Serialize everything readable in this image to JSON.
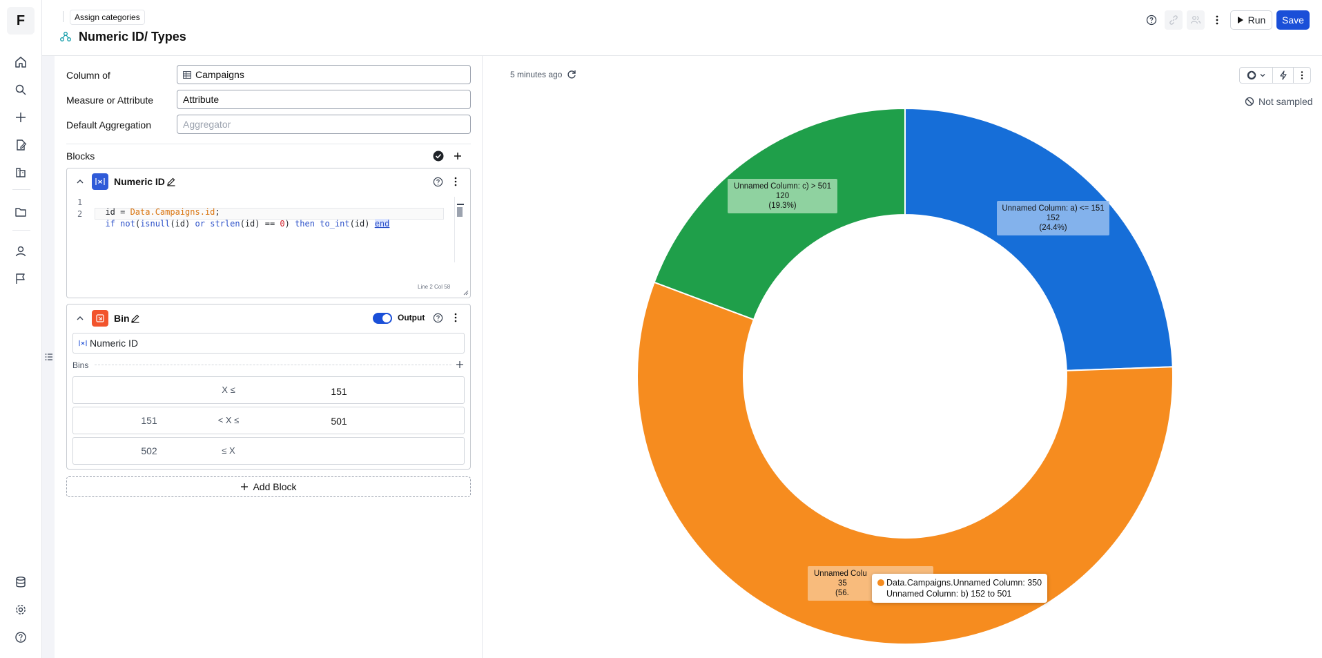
{
  "app": {
    "logo_letter": "F"
  },
  "header": {
    "breadcrumb": "Assign categories",
    "title": "Numeric ID/ Types",
    "run_label": "Run",
    "save_label": "Save"
  },
  "form": {
    "column_of": {
      "label": "Column of",
      "value": "Campaigns"
    },
    "measure_or_attribute": {
      "label": "Measure or Attribute",
      "value": "Attribute"
    },
    "default_aggregation": {
      "label": "Default Aggregation",
      "placeholder": "Aggregator"
    }
  },
  "blocks_label": "Blocks",
  "code_block": {
    "title": "Numeric ID",
    "lines": [
      {
        "num": "1",
        "text": "id = Data.Campaigns.id;"
      },
      {
        "num": "2",
        "text": "if not(isnull(id) or strlen(id) == 0) then to_int(id) end"
      }
    ],
    "status": "Line 2 Col 58"
  },
  "bin_block": {
    "title": "Bin",
    "output_label": "Output",
    "output_enabled": true,
    "input_value": "Numeric ID",
    "bins_label": "Bins",
    "rows": [
      {
        "lower": "",
        "op": "X ≤",
        "upper": "151"
      },
      {
        "lower": "151",
        "op": "< X ≤",
        "upper": "501"
      },
      {
        "lower": "502",
        "op": "≤ X",
        "upper": ""
      }
    ]
  },
  "add_block_label": "Add Block",
  "chart_panel": {
    "timestamp": "5 minutes ago",
    "sampling": "Not sampled"
  },
  "chart_data": {
    "type": "pie",
    "donut": true,
    "slices": [
      {
        "label": "Unnamed Column: a) <= 151",
        "value": 152,
        "percent": "(24.4%)",
        "color": "#166ed8"
      },
      {
        "label": "Unnamed Column: b) 152 to 501",
        "value": 350,
        "percent": "(56.",
        "color": "#f68c1f"
      },
      {
        "label": "Unnamed Column: c) > 501",
        "value": 120,
        "percent": "(19.3%)",
        "color": "#1f9f4a"
      }
    ],
    "partial_label": {
      "title": "Unnamed Colu",
      "value": "35"
    },
    "tooltip": {
      "line1": "Data.Campaigns.Unnamed Column: 350",
      "line2": "Unnamed Column: b) 152 to 501"
    }
  }
}
